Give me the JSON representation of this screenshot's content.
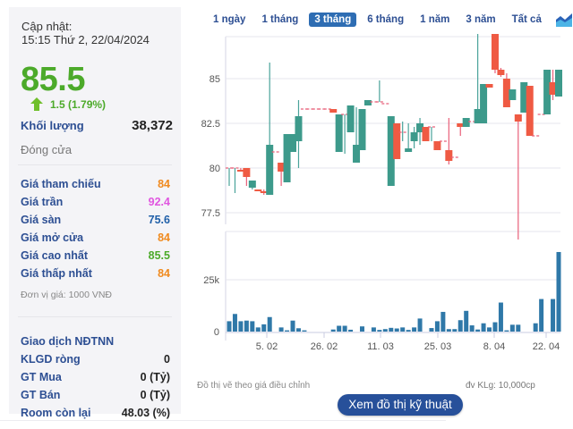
{
  "info": {
    "update_label": "Cập nhật:",
    "update_time": "15:15 Thứ 2, 22/04/2024",
    "price": "85.5",
    "change": "1.5 (1.79%)",
    "change_direction": "up",
    "volume_label": "Khối lượng",
    "volume_value": "38,372",
    "close_label": "Đóng cửa",
    "unit_note": "Đơn vị giá: 1000 VNĐ"
  },
  "prices": [
    {
      "label": "Giá tham chiếu",
      "value": "84",
      "color": "#f08a1e"
    },
    {
      "label": "Giá trần",
      "value": "92.4",
      "color": "#e056e0"
    },
    {
      "label": "Giá sàn",
      "value": "75.6",
      "color": "#1f5fa8"
    },
    {
      "label": "Giá mở cửa",
      "value": "84",
      "color": "#f08a1e"
    },
    {
      "label": "Giá cao nhất",
      "value": "85.5",
      "color": "#4caa2a"
    },
    {
      "label": "Giá thấp nhất",
      "value": "84",
      "color": "#f08a1e"
    }
  ],
  "foreign": {
    "title": "Giao dịch NĐTNN",
    "rows": [
      {
        "label": "KLGD ròng",
        "value": "0"
      },
      {
        "label": "GT Mua",
        "value": "0 (Tỷ)"
      },
      {
        "label": "GT Bán",
        "value": "0 (Tỷ)"
      },
      {
        "label": "Room còn lại",
        "value": "48.03 (%)"
      }
    ]
  },
  "tabs": [
    {
      "label": "1 ngày",
      "active": false
    },
    {
      "label": "1 tháng",
      "active": false
    },
    {
      "label": "3 tháng",
      "active": true
    },
    {
      "label": "6 tháng",
      "active": false
    },
    {
      "label": "1 năm",
      "active": false
    },
    {
      "label": "3 năm",
      "active": false
    },
    {
      "label": "Tất cả",
      "active": false
    }
  ],
  "footer": {
    "note_left": "Đồ thị vẽ theo giá điều chỉnh",
    "note_right": "đv KLg: 10,000cp",
    "tech_button": "Xem đồ thị kỹ thuật"
  },
  "colors": {
    "up": "#3d9a8b",
    "down": "#ef5a43",
    "volume": "#2f78a8",
    "grid": "#e4e4ec"
  },
  "chart_data": {
    "type": "candlestick",
    "title": "",
    "price_axis": {
      "ticks": [
        77.5,
        80,
        82.5,
        85
      ],
      "range": [
        77,
        87.5
      ]
    },
    "volume_axis": {
      "ticks": [
        "0",
        "25k"
      ],
      "range": [
        0,
        45000
      ]
    },
    "x_ticks": [
      "5. 02",
      "26. 02",
      "11. 03",
      "25. 03",
      "8. 04",
      "22. 04"
    ],
    "candles": [
      {
        "o": 80,
        "h": 80,
        "l": 79,
        "c": 80,
        "v": 5000
      },
      {
        "o": 80,
        "h": 80,
        "l": 78.6,
        "c": 80,
        "v": 8500
      },
      {
        "o": 79.9,
        "h": 80,
        "l": 79.9,
        "c": 79.8,
        "v": 5000
      },
      {
        "o": 80,
        "h": 80,
        "l": 79,
        "c": 79.5,
        "v": 5300
      },
      {
        "o": 78.9,
        "h": 79.3,
        "l": 78.8,
        "c": 79.3,
        "v": 5000
      },
      {
        "o": 78.8,
        "h": 78.8,
        "l": 78.7,
        "c": 78.7,
        "v": 2000
      },
      {
        "o": 78.7,
        "h": 78.8,
        "l": 78.5,
        "c": 78.6,
        "v": 3500
      },
      {
        "o": 78.5,
        "h": 85.9,
        "l": 78.5,
        "c": 81.3,
        "v": 7000
      },
      {
        "o": 80.9,
        "h": 80.9,
        "l": 80.9,
        "c": 80.9,
        "v": 0
      },
      {
        "o": 80.3,
        "h": 80.3,
        "l": 79,
        "c": 79.8,
        "v": 2000
      },
      {
        "o": 79.2,
        "h": 81.9,
        "l": 79.2,
        "c": 81.9,
        "v": 600
      },
      {
        "o": 80.9,
        "h": 81.9,
        "l": 80.9,
        "c": 81.9,
        "v": 5300
      },
      {
        "o": 81.5,
        "h": 83.8,
        "l": 80,
        "c": 82.9,
        "v": 1600
      },
      {
        "o": 83.3,
        "h": 83.3,
        "l": 83.3,
        "c": 83.3,
        "v": 600
      },
      {
        "o": 83.3,
        "h": 83.3,
        "l": 83.3,
        "c": 83.3,
        "v": 0
      },
      {
        "o": 83.3,
        "h": 83.3,
        "l": 83.3,
        "c": 83.3,
        "v": 0
      },
      {
        "o": 83.3,
        "h": 83.3,
        "l": 83.3,
        "c": 83.3,
        "v": 0
      },
      {
        "o": 83.3,
        "h": 83.3,
        "l": 83.3,
        "c": 83.3,
        "v": 0
      },
      {
        "o": 83.3,
        "h": 83.3,
        "l": 83.1,
        "c": 83.1,
        "v": 1000
      },
      {
        "o": 80.9,
        "h": 83,
        "l": 80.9,
        "c": 83,
        "v": 2800
      },
      {
        "o": 83,
        "h": 83,
        "l": 80.8,
        "c": 83,
        "v": 2800
      },
      {
        "o": 82,
        "h": 83.5,
        "l": 82,
        "c": 83.5,
        "v": 900
      },
      {
        "o": 80.3,
        "h": 83.4,
        "l": 80.3,
        "c": 81.3,
        "v": 0
      },
      {
        "o": 81,
        "h": 83.3,
        "l": 81,
        "c": 83.3,
        "v": 2500
      },
      {
        "o": 83.5,
        "h": 83.8,
        "l": 83.5,
        "c": 83.8,
        "v": 0
      },
      {
        "o": 83.7,
        "h": 83.7,
        "l": 83.7,
        "c": 83.7,
        "v": 2000
      },
      {
        "o": 83.7,
        "h": 84.9,
        "l": 83.7,
        "c": 83.7,
        "v": 800
      },
      {
        "o": 83.6,
        "h": 83.6,
        "l": 83.6,
        "c": 83.6,
        "v": 1200
      },
      {
        "o": 79,
        "h": 82.9,
        "l": 79,
        "c": 82.9,
        "v": 1800
      },
      {
        "o": 82.5,
        "h": 82.5,
        "l": 80.5,
        "c": 80.5,
        "v": 1500
      },
      {
        "o": 82,
        "h": 82.6,
        "l": 81.5,
        "c": 82,
        "v": 2000
      },
      {
        "o": 80.9,
        "h": 82.5,
        "l": 80.9,
        "c": 81.1,
        "v": 800
      },
      {
        "o": 81.5,
        "h": 82.3,
        "l": 81.1,
        "c": 82,
        "v": 2000
      },
      {
        "o": 82,
        "h": 82.8,
        "l": 81.3,
        "c": 82.5,
        "v": 6300
      },
      {
        "o": 82.3,
        "h": 82.3,
        "l": 81.5,
        "c": 81.5,
        "v": 0
      },
      {
        "o": 82.3,
        "h": 82.3,
        "l": 81.5,
        "c": 82.3,
        "v": 1700
      },
      {
        "o": 81.5,
        "h": 81.5,
        "l": 81,
        "c": 81,
        "v": 5000
      },
      {
        "o": 81.5,
        "h": 81.5,
        "l": 81.5,
        "c": 81.5,
        "v": 9500
      },
      {
        "o": 81,
        "h": 82.8,
        "l": 80.2,
        "c": 80.4,
        "v": 1200
      },
      {
        "o": 80.6,
        "h": 80.6,
        "l": 80.6,
        "c": 80.6,
        "v": 1200
      },
      {
        "o": 82.5,
        "h": 82.5,
        "l": 81.8,
        "c": 82.3,
        "v": 5500
      },
      {
        "o": 82.3,
        "h": 82.8,
        "l": 82.3,
        "c": 82.8,
        "v": 10000
      },
      {
        "o": 82.6,
        "h": 82.6,
        "l": 82.6,
        "c": 82.6,
        "v": 3000
      },
      {
        "o": 82.5,
        "h": 87.5,
        "l": 82.5,
        "c": 83.3,
        "v": 1000
      },
      {
        "o": 82.5,
        "h": 84.7,
        "l": 82.5,
        "c": 84.7,
        "v": 4000
      },
      {
        "o": 84.7,
        "h": 84.7,
        "l": 84.7,
        "c": 84.5,
        "v": 2000
      },
      {
        "o": 87.5,
        "h": 87.5,
        "l": 85.3,
        "c": 85.5,
        "v": 4500
      },
      {
        "o": 85.5,
        "h": 85.6,
        "l": 85.1,
        "c": 85.2,
        "v": 14000
      },
      {
        "o": 85,
        "h": 85.3,
        "l": 84,
        "c": 83.4,
        "v": 600
      },
      {
        "o": 83.8,
        "h": 84.4,
        "l": 83.8,
        "c": 84.4,
        "v": 3300
      },
      {
        "o": 83,
        "h": 83,
        "l": 76,
        "c": 82.6,
        "v": 3300
      },
      {
        "o": 83.1,
        "h": 84.5,
        "l": 83.1,
        "c": 84.8,
        "v": 0
      },
      {
        "o": 84.6,
        "h": 84.6,
        "l": 81.8,
        "c": 81.8,
        "v": 0
      },
      {
        "o": 81.8,
        "h": 81.8,
        "l": 81.8,
        "c": 81.8,
        "v": 4000
      },
      {
        "o": 83,
        "h": 83,
        "l": 83,
        "c": 83,
        "v": 15700
      },
      {
        "o": 83,
        "h": 85.5,
        "l": 83,
        "c": 85.5,
        "v": 0
      },
      {
        "o": 84.8,
        "h": 85.5,
        "l": 83.8,
        "c": 84.1,
        "v": 15700
      },
      {
        "o": 84,
        "h": 85.5,
        "l": 84,
        "c": 85.5,
        "v": 38372
      }
    ]
  }
}
